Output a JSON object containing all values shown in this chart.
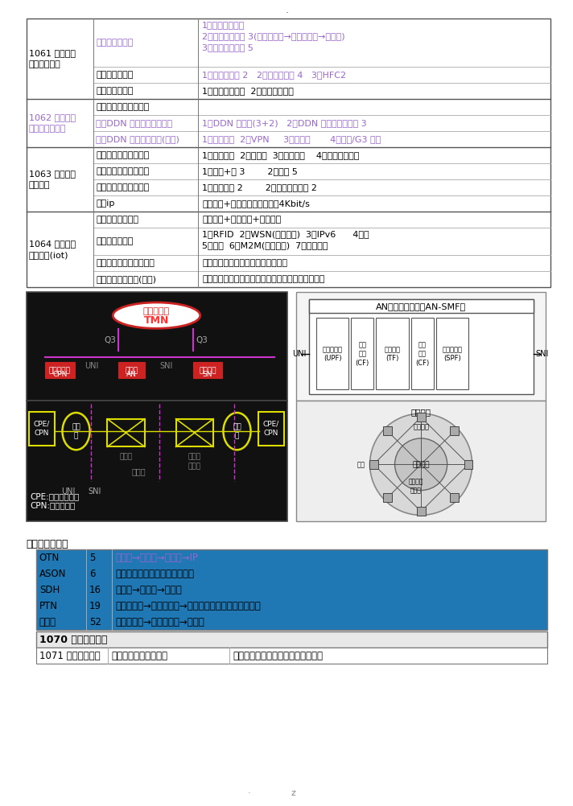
{
  "bg_color": "#ffffff",
  "rows_data": [
    {
      "c0": "1061 用户接入\n网类型及应用",
      "c0_color": "#000000",
      "c1": "一、接入网功能",
      "c1_color": "#9966cc",
      "c2": "1、接入网的定界\n2、接入网的分层 3(传输通路层→传输通道层→电路层)\n3、接入网的功能 5",
      "c2_color": "#9966cc",
      "c0_merge": 3
    },
    {
      "c1": "二、有线接入网",
      "c1_color": "#000000",
      "c2": "1、铜线接入网 2   2、光纤接入网 4   3、HFC2",
      "c2_color": "#9966cc"
    },
    {
      "c1": "三、无线接入网",
      "c1_color": "#000000",
      "c2": "1、固定无线接入  2、移动无线接入",
      "c2_color": "#000000"
    },
    {
      "c0": "1062 数字数据\n网的构成及应用",
      "c0_color": "#9966cc",
      "c1": "一、数字数据网的特点",
      "c1_color": "#000000",
      "c2": "",
      "c2_color": "#000000",
      "c0_merge": 3
    },
    {
      "c1": "二、DDN 的组成和结构形式",
      "c1_color": "#9966cc",
      "c2": "1、DDN 的组成(3+2)   2、DDN 结构及节点类型 3",
      "c2_color": "#9966cc"
    },
    {
      "c1": "三、DDN 网络业务类别(了解)",
      "c1_color": "#9966cc",
      "c2": "1、专用电路  2、VPN     3、帧中继       4、语音/G3 传真",
      "c2_color": "#9966cc"
    },
    {
      "c0": "1063 计算机网\n络的内容",
      "c0_color": "#000000",
      "c1": "一、计算机网络的功能",
      "c1_color": "#000000",
      "c2": "1、资源共享  2、可靠性  3、均衡负载    4、工作环境灵活",
      "c2_color": "#000000",
      "c0_merge": 4
    },
    {
      "c1": "二、计算机网络的分类",
      "c1_color": "#000000",
      "c2": "1、覆盖+围 3        2、拓扑 5",
      "c2_color": "#000000"
    },
    {
      "c1": "三、计算机网络的组成",
      "c1_color": "#000000",
      "c2": "1、结构分类 2        2、网络组成分类 2",
      "c2_color": "#000000"
    },
    {
      "c1": "四、ip",
      "c1_color": "#000000",
      "c2": "语音压缩+语音分组交换技术、4Kbit/s",
      "c2_color": "#000000"
    },
    {
      "c0": "1064 物联网技\n术及应用(iot)",
      "c0_color": "#000000",
      "c1": "一、物联网的特征",
      "c1_color": "#000000",
      "c2": "全面感知+可靠传递+智能处理",
      "c2_color": "#000000",
      "c0_merge": 4
    },
    {
      "c1": "二、物联网技术",
      "c1_color": "#000000",
      "c2": "1、RFID  2、WSN(无线传感)  3、IPv6      4、云\n5、纳米  6、M2M(无线通讯)  7、智能终端",
      "c2_color": "#000000"
    },
    {
      "c1": "三、物联网技术框架结构",
      "c1_color": "#000000",
      "c2": "感知层、网络层、应用层、公共技术",
      "c2_color": "#000000"
    },
    {
      "c1": "四、物联网的应用(了解)",
      "c1_color": "#000000",
      "c2": "交通、医疗、电网、建筑、工业、农业、生态、军事",
      "c2_color": "#000000"
    }
  ],
  "comparison_title": "几个分层比较：",
  "comparison_rows": [
    {
      "c0": "OTN",
      "c1": "5",
      "c2": "传输段→复用段→信道段→IP",
      "c2_color": "#9966cc"
    },
    {
      "c0": "ASON",
      "c1": "6",
      "c2": "控制平面、传送平面、管理平面",
      "c2_color": "#000000"
    },
    {
      "c0": "SDH",
      "c1": "16",
      "c2": "再生段→复用段→数字段",
      "c2_color": "#000000"
    },
    {
      "c0": "PTN",
      "c1": "19",
      "c2": "传输媒介层→传输通路层→传输通道层（另加三个平面）",
      "c2_color": "#000000"
    },
    {
      "c0": "接入网",
      "c1": "52",
      "c2": "传输媒质层→传输通道层→电路层",
      "c2_color": "#000000"
    }
  ],
  "sec1070": "1070 通信电源系统",
  "sec1071_c0": "1071 通信电源系统",
  "sec1071_c1": "一、通信电源系统要求",
  "sec1071_c2": "可靠、稳定、小型、高效并且无干扰"
}
